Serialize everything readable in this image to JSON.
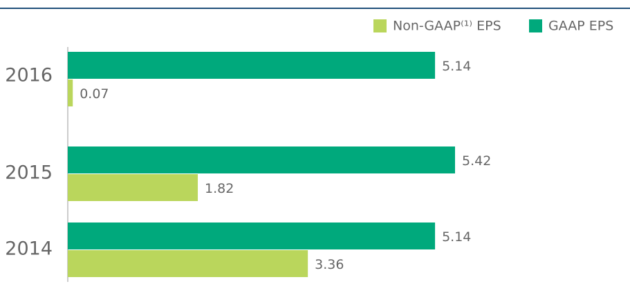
{
  "chart_data": {
    "type": "bar",
    "orientation": "horizontal",
    "categories": [
      "2016",
      "2015",
      "2014"
    ],
    "series": [
      {
        "name": "Non-GAAP⁽¹⁾ EPS",
        "color": "#bad65c",
        "values": [
          0.07,
          1.82,
          3.36
        ]
      },
      {
        "name": "GAAP EPS",
        "color": "#00a97c",
        "values": [
          5.14,
          5.42,
          5.14
        ]
      }
    ],
    "legend": "top-right"
  }
}
